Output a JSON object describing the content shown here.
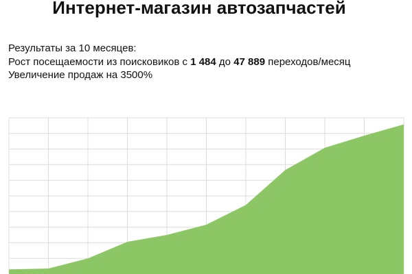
{
  "chart_data": {
    "type": "area",
    "title": "Интернет-магазин автозапчастей",
    "subtitle": "Результаты за 10 месяцев:",
    "annotations": [
      [
        "Рост посещаемости из поисковиков с ",
        "1 484",
        " до ",
        "47 889",
        " переходов/месяц"
      ],
      "Увеличение продаж на 3500%"
    ],
    "categories": [
      null,
      null,
      null,
      null,
      null,
      null,
      null,
      null,
      null,
      null,
      null
    ],
    "values": [
      1484,
      1750,
      5000,
      10300,
      12500,
      15800,
      22100,
      33300,
      40400,
      44300,
      47889
    ],
    "color": "#8cc665",
    "ylim": [
      0,
      50000
    ],
    "yticks": [
      0,
      5000,
      10000,
      15000,
      20000,
      25000,
      30000,
      35000,
      40000,
      45000,
      50000
    ],
    "tick_labels": false,
    "grid": true
  }
}
